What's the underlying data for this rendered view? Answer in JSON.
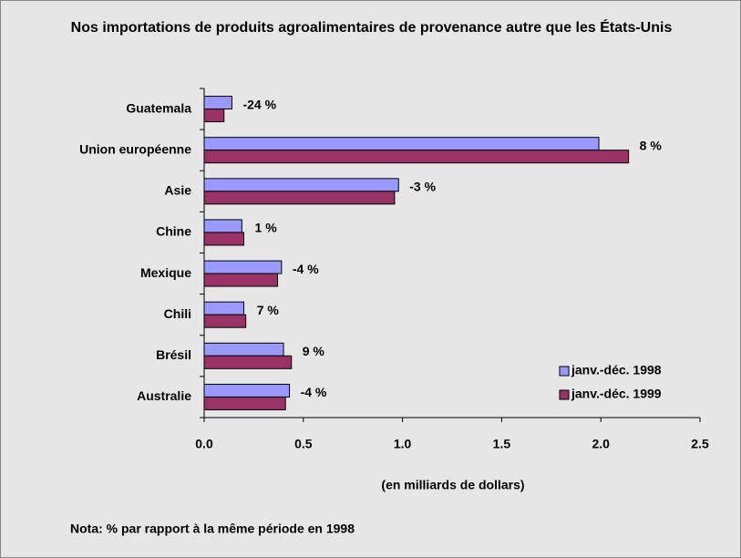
{
  "chart_data": {
    "type": "hbar",
    "title": "Nos importations de produits agroalimentaires de provenance autre que les États-Unis",
    "categories": [
      "Guatemala",
      "Union européenne",
      "Asie",
      "Chine",
      "Mexique",
      "Chili",
      "Brésil",
      "Australie"
    ],
    "series": [
      {
        "name": "janv.-déc. 1998",
        "color": "#9999ff",
        "values": [
          0.14,
          1.99,
          0.98,
          0.19,
          0.39,
          0.2,
          0.4,
          0.43
        ]
      },
      {
        "name": "janv.-déc. 1999",
        "color": "#993366",
        "values": [
          0.1,
          2.14,
          0.96,
          0.2,
          0.37,
          0.21,
          0.44,
          0.41
        ]
      }
    ],
    "annotations": [
      "-24 %",
      "8 %",
      "-3 %",
      "1 %",
      "-4 %",
      "7 %",
      "9 %",
      "-4 %"
    ],
    "xlabel": "(en milliards de dollars)",
    "note": "Nota: % par rapport à la même période en 1998",
    "xlim": [
      0,
      2.5
    ],
    "xticks": [
      {
        "value": 0,
        "label": "0.0"
      },
      0.5,
      {
        "value": 1,
        "label": "1.0"
      },
      1.5,
      {
        "value": 2,
        "label": "2.0"
      },
      2.5
    ],
    "legend": "lower right",
    "grid": false
  }
}
